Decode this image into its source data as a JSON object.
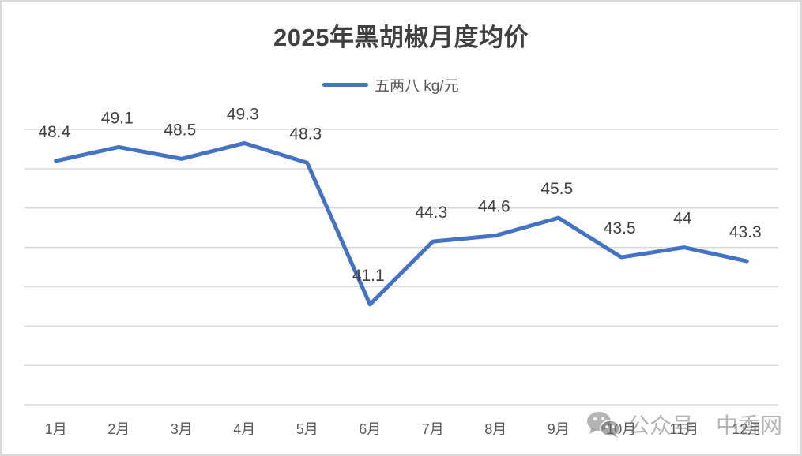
{
  "chart_data": {
    "type": "line",
    "title": "2025年黑胡椒月度均价",
    "categories": [
      "1月",
      "2月",
      "3月",
      "4月",
      "5月",
      "6月",
      "7月",
      "8月",
      "9月",
      "10月",
      "11月",
      "12月"
    ],
    "series": [
      {
        "name": "五两八 kg/元",
        "color": "#4472C4",
        "values": [
          48.4,
          49.1,
          48.5,
          49.3,
          48.3,
          41.1,
          44.3,
          44.6,
          45.5,
          43.5,
          44,
          43.3
        ],
        "labels": [
          "48.4",
          "49.1",
          "48.5",
          "49.3",
          "48.3",
          "41.1",
          "44.3",
          "44.6",
          "45.5",
          "43.5",
          "44",
          "43.3"
        ]
      }
    ],
    "xlabel": "",
    "ylabel": "",
    "ylim": [
      36,
      50
    ],
    "y_gridlines": [
      36,
      38,
      40,
      42,
      44,
      46,
      48,
      50
    ],
    "y_tick_labels_visible": false,
    "grid": true,
    "legend_position": "top"
  },
  "header": {
    "title": "2025年黑胡椒月度均价"
  },
  "legend": {
    "label": "五两八 kg/元",
    "color": "#4472C4"
  },
  "watermark": {
    "icon": "wechat-icon",
    "source": "公众号",
    "name": "中香网"
  }
}
